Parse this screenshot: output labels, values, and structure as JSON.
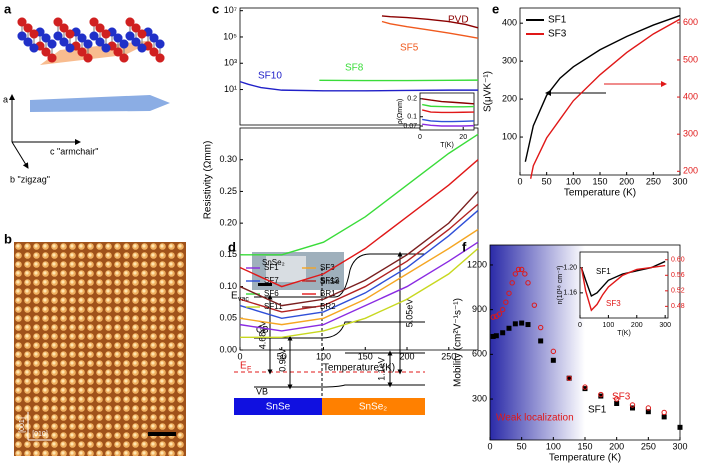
{
  "figure": {
    "a": {
      "label": "a",
      "axes": [
        "a",
        "b \"zigzag\"",
        "c \"armchair\""
      ]
    },
    "b": {
      "label": "b",
      "directions": [
        "[001]",
        "[010]"
      ]
    },
    "d": {
      "label": "d",
      "photo": [
        "SnSe₂",
        "SnSe"
      ],
      "vac": [
        "E",
        "vac"
      ],
      "cb": "CB",
      "fermi": [
        "E",
        "F"
      ],
      "vb": "VB",
      "gaps": [
        "4.68eV",
        "0.9eV",
        "1.1eV",
        "5.05eV"
      ],
      "materials": [
        "SnSe",
        "SnSe₂"
      ]
    }
  },
  "chart_data": [
    {
      "type": "line",
      "label": "c",
      "ylog": true,
      "xlim": [
        0,
        285
      ],
      "ylim": [
        0.02,
        16000000
      ],
      "yticks": [
        {
          "value": 10,
          "label": "10¹"
        },
        {
          "value": 1000,
          "label": "10³"
        },
        {
          "value": 100000,
          "label": "10⁵"
        },
        {
          "value": 10000000,
          "label": "10⁷"
        }
      ],
      "series": [
        {
          "name": "PVD",
          "color": "#8b0000",
          "x": [
            170,
            180,
            200,
            225,
            250,
            270,
            285
          ],
          "values": [
            4000000,
            3500000,
            3000000,
            2200000,
            1500000,
            900000,
            500000
          ]
        },
        {
          "name": "SF5",
          "color": "#f05a1e",
          "x": [
            170,
            180,
            200,
            225,
            250,
            270,
            285
          ],
          "values": [
            1500000,
            1000000,
            600000,
            350000,
            200000,
            120000,
            80000
          ]
        },
        {
          "name": "SF10",
          "color": "#2020c8",
          "x": [
            0,
            10,
            25,
            50,
            100,
            150,
            200,
            250,
            285
          ],
          "values": [
            40,
            25,
            14,
            9,
            8,
            8,
            8.5,
            9,
            9
          ]
        },
        {
          "name": "SF8",
          "color": "#3adc3a",
          "x": [
            95,
            150,
            200,
            250,
            285
          ],
          "values": [
            50,
            48,
            48,
            50,
            52
          ]
        }
      ]
    },
    {
      "type": "line",
      "xlabel": "Temperature (K)",
      "ylabel": "Resistivity (Ωmm)",
      "xlim": [
        0,
        285
      ],
      "ylim": [
        0,
        0.35
      ],
      "xticks": [
        0,
        50,
        100,
        150,
        200,
        250
      ],
      "yticks": [
        {
          "value": 0,
          "label": "0.00"
        },
        0.05,
        {
          "value": 0.1,
          "label": "0.10"
        },
        0.15,
        {
          "value": 0.2,
          "label": "0.20"
        },
        0.25,
        {
          "value": 0.3,
          "label": "0.30"
        }
      ],
      "x": [
        0,
        50,
        100,
        150,
        200,
        250,
        285
      ],
      "series": [
        {
          "name": "SF1",
          "color": "#8a2be2",
          "values": [
            0.04,
            0.03,
            0.04,
            0.07,
            0.1,
            0.14,
            0.17
          ]
        },
        {
          "name": "SF3",
          "color": "#f5a623",
          "values": [
            0.05,
            0.04,
            0.05,
            0.08,
            0.12,
            0.16,
            0.19
          ]
        },
        {
          "name": "SF7",
          "color": "#2f4fd8",
          "values": [
            0.07,
            0.05,
            0.06,
            0.09,
            0.13,
            0.18,
            0.22
          ]
        },
        {
          "name": "SF12",
          "color": "#b22222",
          "values": [
            0.08,
            0.06,
            0.07,
            0.1,
            0.14,
            0.19,
            0.23
          ]
        },
        {
          "name": "SF6",
          "color": "#3adc3a",
          "values": [
            0.15,
            0.15,
            0.17,
            0.21,
            0.26,
            0.31,
            0.34
          ]
        },
        {
          "name": "BR1",
          "color": "#e01818",
          "values": [
            0.13,
            0.1,
            0.12,
            0.16,
            0.21,
            0.26,
            0.3
          ]
        },
        {
          "name": "SF11",
          "color": "#c8d820",
          "values": [
            0.02,
            0.02,
            0.03,
            0.05,
            0.08,
            0.12,
            0.16
          ]
        },
        {
          "name": "BR2",
          "color": "#7a1f1f",
          "values": [
            0.1,
            0.07,
            0.08,
            0.11,
            0.15,
            0.2,
            0.25
          ]
        }
      ],
      "legend": "lower left"
    },
    {
      "type": "line",
      "ylog": true,
      "xlabel": "T(K)",
      "ylabel": "ρ(Ωmm)",
      "xlim": [
        0,
        25
      ],
      "ylim": [
        0.06,
        0.25
      ],
      "xticks": [
        0,
        20
      ],
      "yticks": [
        0.07,
        0.1,
        0.2
      ],
      "x": [
        1,
        5,
        10,
        15,
        20,
        25
      ],
      "series": [
        {
          "color": "#8b0000",
          "values": [
            0.2,
            0.19,
            0.18,
            0.175,
            0.17,
            0.165
          ]
        },
        {
          "color": "#3adc3a",
          "values": [
            0.16,
            0.15,
            0.148,
            0.147,
            0.147,
            0.148
          ]
        },
        {
          "color": "#e01818",
          "values": [
            0.13,
            0.12,
            0.118,
            0.118,
            0.119,
            0.12
          ]
        },
        {
          "color": "#2f4fd8",
          "values": [
            0.09,
            0.085,
            0.083,
            0.083,
            0.084,
            0.085
          ]
        },
        {
          "color": "#8a2be2",
          "values": [
            0.075,
            0.072,
            0.07,
            0.07,
            0.07,
            0.071
          ]
        }
      ]
    },
    {
      "type": "line",
      "label": "e",
      "xlabel": "Temperature (K)",
      "ylabel": "S(μVK⁻¹)",
      "xlim": [
        0,
        300
      ],
      "ylim": [
        0,
        440
      ],
      "y2lim": [
        190,
        640
      ],
      "xticks": [
        0,
        50,
        100,
        150,
        200,
        250,
        300
      ],
      "yticks": [
        100,
        200,
        300,
        400
      ],
      "y2ticks": [
        200,
        300,
        400,
        500,
        600
      ],
      "legend": "upper left",
      "series": [
        {
          "name": "SF1",
          "color": "#000000",
          "x": [
            10,
            25,
            50,
            75,
            100,
            150,
            200,
            250,
            300
          ],
          "values": [
            35,
            130,
            210,
            255,
            285,
            330,
            365,
            395,
            420
          ]
        },
        {
          "name": "SF3",
          "color": "#e01818",
          "axis": "y2",
          "x": [
            20,
            25,
            50,
            75,
            100,
            150,
            200,
            250,
            300
          ],
          "values": [
            180,
            215,
            290,
            340,
            390,
            460,
            520,
            570,
            610
          ]
        }
      ]
    },
    {
      "type": "scatter",
      "label": "f",
      "xlabel": "Temperature (K)",
      "ylabel": "Mobility (cm²V⁻¹s⁻¹)",
      "annotation": "Weak localization",
      "xlim": [
        0,
        300
      ],
      "ylim": [
        25,
        1334
      ],
      "xticks": [
        0,
        50,
        100,
        150,
        200,
        250,
        300
      ],
      "yticks": [
        300,
        600,
        900,
        1200
      ],
      "series": [
        {
          "name": "SF1",
          "color": "#000000",
          "marker": "square",
          "x": [
            5,
            10,
            20,
            30,
            40,
            50,
            60,
            80,
            100,
            125,
            150,
            175,
            200,
            225,
            250,
            275,
            300
          ],
          "values": [
            720,
            725,
            745,
            775,
            805,
            810,
            800,
            690,
            560,
            440,
            370,
            320,
            270,
            240,
            215,
            180,
            110
          ]
        },
        {
          "name": "SF3",
          "color": "#e01818",
          "marker": "circle",
          "x": [
            5,
            10,
            15,
            20,
            25,
            30,
            35,
            40,
            45,
            50,
            55,
            60,
            70,
            80,
            100,
            125,
            150,
            175,
            200,
            225,
            250,
            275
          ],
          "values": [
            850,
            855,
            870,
            900,
            950,
            1010,
            1080,
            1140,
            1170,
            1170,
            1140,
            1080,
            930,
            780,
            620,
            440,
            380,
            330,
            300,
            260,
            240,
            210
          ]
        }
      ]
    },
    {
      "type": "line",
      "xlabel": "T(K)",
      "ylabel": "n(10¹⁸ cm⁻³)",
      "xlim": [
        0,
        310
      ],
      "ylim": [
        1.12,
        1.225
      ],
      "y2lim": [
        0.45,
        0.62
      ],
      "xticks": [
        0,
        100,
        200,
        300
      ],
      "yticks": [
        1.16,
        {
          "value": 1.2,
          "label": "1.20"
        }
      ],
      "y2ticks": [
        0.48,
        0.52,
        0.56,
        {
          "value": 0.6,
          "label": "0.60"
        }
      ],
      "x": [
        5,
        20,
        40,
        60,
        80,
        100,
        150,
        200,
        250,
        300
      ],
      "series": [
        {
          "name": "SF1",
          "color": "#000000",
          "values": [
            1.2,
            1.18,
            1.155,
            1.16,
            1.17,
            1.18,
            1.19,
            1.195,
            1.2,
            1.21
          ]
        },
        {
          "name": "SF3",
          "color": "#e01818",
          "axis": "y2",
          "values": [
            0.58,
            0.52,
            0.47,
            0.485,
            0.51,
            0.53,
            0.56,
            0.575,
            0.58,
            0.585
          ]
        }
      ]
    }
  ]
}
